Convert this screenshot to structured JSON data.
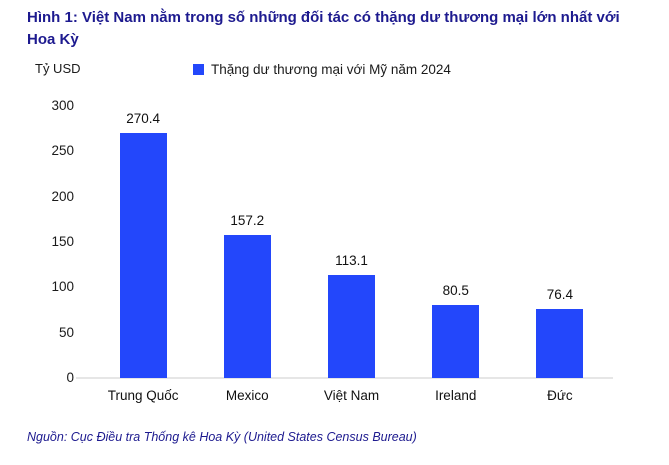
{
  "title": "Hình 1: Việt Nam nằm trong số những đối tác có thặng dư thương mại lớn nhất với Hoa Kỳ",
  "y_axis_unit": "Tỷ USD",
  "legend": {
    "label": "Thặng dư thương mại với Mỹ năm 2024",
    "swatch_icon": "square-icon"
  },
  "source": "Nguồn: Cục Điều tra Thống kê Hoa Kỳ (United States Census Bureau)",
  "colors": {
    "bar": "#2347fb",
    "title": "#1d1a8f",
    "source_text": "#1d1a8f",
    "axis_line": "#e6e6e6",
    "text": "#1a1a1a",
    "background": "#ffffff"
  },
  "chart_data": {
    "type": "bar",
    "categories": [
      "Trung Quốc",
      "Mexico",
      "Việt Nam",
      "Ireland",
      "Đức"
    ],
    "values": [
      270.4,
      157.2,
      113.1,
      80.5,
      76.4
    ],
    "title": "Hình 1: Việt Nam nằm trong số những đối tác có thặng dư thương mại lớn nhất với Hoa Kỳ",
    "xlabel": "",
    "ylabel": "Tỷ USD",
    "ylim": [
      0,
      300
    ],
    "y_ticks": [
      0,
      50,
      100,
      150,
      200,
      250,
      300
    ],
    "grid": false,
    "legend_entries": [
      "Thặng dư thương mại với Mỹ năm 2024"
    ],
    "legend_position": "top",
    "value_labels_shown": true
  }
}
